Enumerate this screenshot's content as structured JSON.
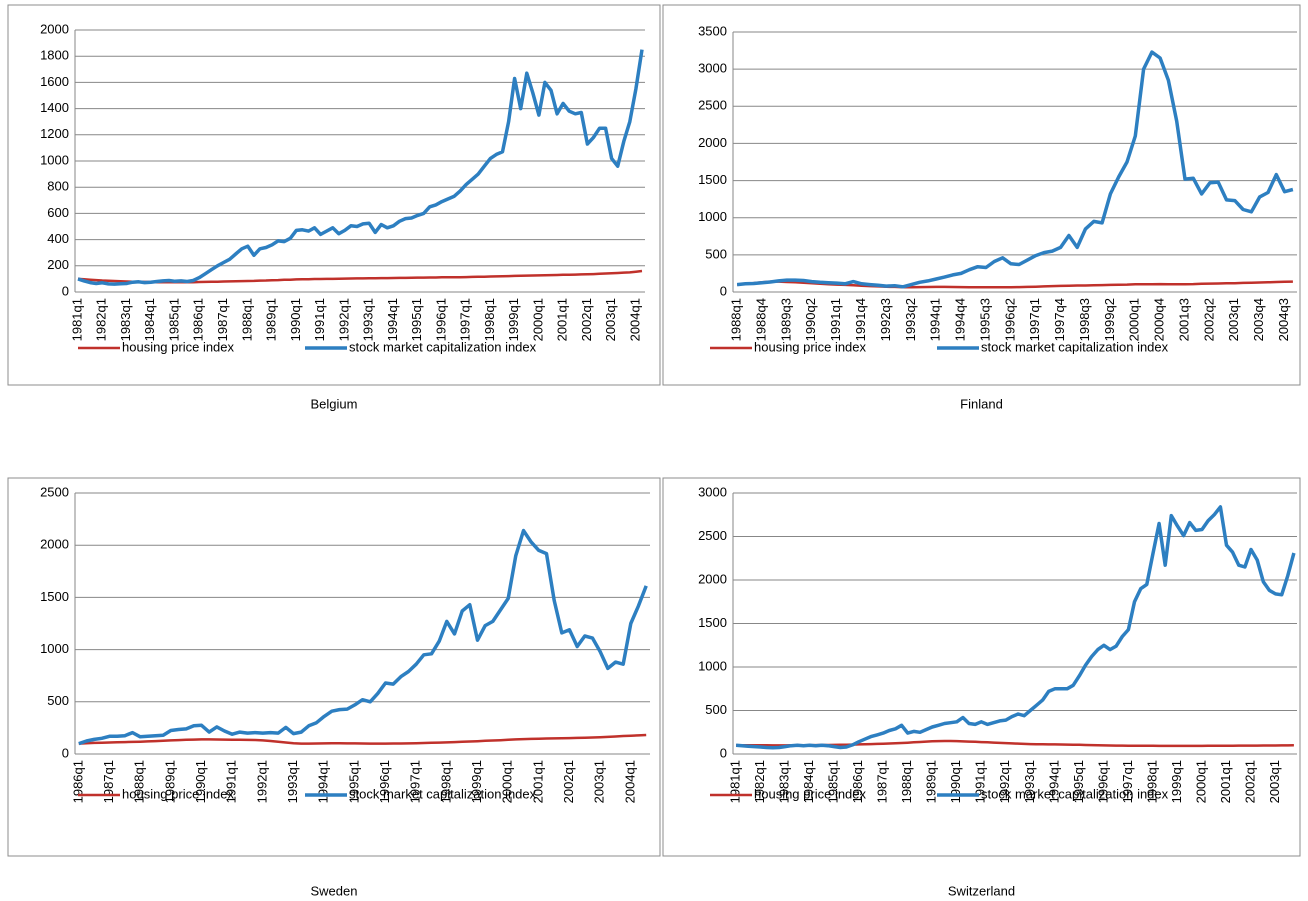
{
  "chart_data": [
    {
      "type": "line",
      "title": "Belgium",
      "categories": [
        "1981q1",
        null,
        null,
        null,
        "1982q1",
        null,
        null,
        null,
        "1983q1",
        null,
        null,
        null,
        "1984q1",
        null,
        null,
        null,
        "1985q1",
        null,
        null,
        null,
        "1986q1",
        null,
        null,
        null,
        "1987q1",
        null,
        null,
        null,
        "1988q1",
        null,
        null,
        null,
        "1989q1",
        null,
        null,
        null,
        "1990q1",
        null,
        null,
        null,
        "1991q1",
        null,
        null,
        null,
        "1992q1",
        null,
        null,
        null,
        "1993q1",
        null,
        null,
        null,
        "1994q1",
        null,
        null,
        null,
        "1995q1",
        null,
        null,
        null,
        "1996q1",
        null,
        null,
        null,
        "1997q1",
        null,
        null,
        null,
        "1998q1",
        null,
        null,
        null,
        "1999q1",
        null,
        null,
        null,
        "2000q1",
        null,
        null,
        null,
        "2001q1",
        null,
        null,
        null,
        "2002q1",
        null,
        null,
        null,
        "2003q1",
        null,
        null,
        null,
        "2004q1",
        null
      ],
      "series": [
        {
          "name": "housing price index",
          "color": "#c0312b",
          "values": [
            100,
            97,
            94,
            91,
            88,
            86,
            84,
            82,
            80,
            79,
            78,
            77,
            76,
            75,
            75,
            74,
            74,
            74,
            75,
            75,
            76,
            77,
            78,
            79,
            80,
            81,
            82,
            83,
            84,
            85,
            87,
            88,
            90,
            91,
            93,
            94,
            96,
            97,
            98,
            99,
            99,
            100,
            100,
            101,
            102,
            103,
            104,
            104,
            105,
            105,
            106,
            106,
            107,
            108,
            108,
            109,
            110,
            110,
            111,
            111,
            112,
            112,
            113,
            113,
            114,
            115,
            116,
            117,
            118,
            119,
            120,
            121,
            123,
            124,
            125,
            126,
            127,
            128,
            129,
            130,
            131,
            132,
            133,
            134,
            135,
            137,
            139,
            141,
            143,
            145,
            148,
            150,
            155,
            160
          ]
        },
        {
          "name": "stock market capitalization index",
          "color": "#2d7fc1",
          "values": [
            100,
            85,
            72,
            65,
            70,
            62,
            60,
            63,
            65,
            75,
            78,
            72,
            75,
            80,
            85,
            88,
            82,
            85,
            80,
            88,
            110,
            140,
            170,
            200,
            225,
            250,
            290,
            330,
            350,
            280,
            330,
            340,
            360,
            390,
            385,
            410,
            470,
            475,
            465,
            490,
            440,
            465,
            490,
            445,
            470,
            505,
            500,
            520,
            525,
            455,
            515,
            490,
            505,
            540,
            560,
            565,
            585,
            600,
            650,
            665,
            690,
            710,
            730,
            770,
            820,
            860,
            900,
            960,
            1020,
            1050,
            1070,
            1300,
            1630,
            1400,
            1670,
            1520,
            1350,
            1600,
            1540,
            1360,
            1440,
            1380,
            1360,
            1370,
            1130,
            1180,
            1250,
            1250,
            1020,
            960,
            1150,
            1300,
            1550,
            1850
          ]
        }
      ],
      "ylim": [
        0,
        2000
      ],
      "yticks": [
        0,
        200,
        400,
        600,
        800,
        1000,
        1200,
        1400,
        1600,
        1800,
        2000
      ],
      "grid": true,
      "legend": "bottom"
    },
    {
      "type": "line",
      "title": "Finland",
      "categories": [
        "1988q1",
        null,
        null,
        "1988q4",
        null,
        null,
        "1989q3",
        null,
        null,
        "1990q2",
        null,
        null,
        "1991q1",
        null,
        null,
        "1991q4",
        null,
        null,
        "1992q3",
        null,
        null,
        "1993q2",
        null,
        null,
        "1994q1",
        null,
        null,
        "1994q4",
        null,
        null,
        "1995q3",
        null,
        null,
        "1996q2",
        null,
        null,
        "1997q1",
        null,
        null,
        "1997q4",
        null,
        null,
        "1998q3",
        null,
        null,
        "1999q2",
        null,
        null,
        "2000q1",
        null,
        null,
        "2000q4",
        null,
        null,
        "2001q3",
        null,
        null,
        "2002q2",
        null,
        null,
        "2003q1",
        null,
        null,
        "2003q4",
        null,
        null,
        "2004q3",
        null
      ],
      "series": [
        {
          "name": "housing price index",
          "color": "#c0312b",
          "values": [
            100,
            110,
            120,
            130,
            140,
            140,
            135,
            130,
            125,
            118,
            110,
            105,
            100,
            95,
            90,
            85,
            80,
            75,
            70,
            68,
            65,
            65,
            66,
            67,
            68,
            68,
            67,
            66,
            65,
            64,
            63,
            63,
            63,
            64,
            66,
            68,
            72,
            76,
            80,
            82,
            85,
            87,
            88,
            90,
            93,
            96,
            98,
            100,
            103,
            105,
            105,
            106,
            105,
            104,
            105,
            107,
            110,
            113,
            115,
            117,
            119,
            122,
            125,
            128,
            131,
            134,
            137,
            140
          ]
        },
        {
          "name": "stock market capitalization index",
          "color": "#2d7fc1",
          "values": [
            100,
            110,
            115,
            125,
            135,
            150,
            160,
            160,
            155,
            140,
            130,
            125,
            120,
            110,
            140,
            110,
            100,
            90,
            80,
            85,
            70,
            100,
            130,
            150,
            175,
            200,
            230,
            250,
            300,
            340,
            330,
            410,
            460,
            380,
            370,
            430,
            490,
            530,
            550,
            600,
            760,
            600,
            850,
            950,
            930,
            1320,
            1550,
            1750,
            2100,
            3000,
            3230,
            3150,
            2850,
            2300,
            1520,
            1530,
            1320,
            1470,
            1480,
            1240,
            1230,
            1110,
            1080,
            1280,
            1340,
            1580,
            1350,
            1380
          ]
        }
      ],
      "ylim": [
        0,
        3500
      ],
      "yticks": [
        0,
        500,
        1000,
        1500,
        2000,
        2500,
        3000,
        3500
      ],
      "grid": true,
      "legend": "bottom"
    },
    {
      "type": "line",
      "title": "Sweden",
      "categories": [
        "1986q1",
        null,
        null,
        null,
        "1987q1",
        null,
        null,
        null,
        "1988q1",
        null,
        null,
        null,
        "1989q1",
        null,
        null,
        null,
        "1990q1",
        null,
        null,
        null,
        "1991q1",
        null,
        null,
        null,
        "1992q1",
        null,
        null,
        null,
        "1993q1",
        null,
        null,
        null,
        "1994q1",
        null,
        null,
        null,
        "1995q1",
        null,
        null,
        null,
        "1996q1",
        null,
        null,
        null,
        "1997q1",
        null,
        null,
        null,
        "1998q1",
        null,
        null,
        null,
        "1999q1",
        null,
        null,
        null,
        "2000q1",
        null,
        null,
        null,
        "2001q1",
        null,
        null,
        null,
        "2002q1",
        null,
        null,
        null,
        "2003q1",
        null,
        null,
        null,
        "2004q1",
        null,
        null
      ],
      "series": [
        {
          "name": "housing price index",
          "color": "#c0312b",
          "values": [
            100,
            103,
            106,
            108,
            110,
            112,
            114,
            116,
            118,
            121,
            124,
            127,
            130,
            133,
            136,
            138,
            140,
            140,
            139,
            138,
            137,
            136,
            135,
            134,
            130,
            125,
            118,
            110,
            103,
            100,
            100,
            101,
            102,
            103,
            103,
            102,
            102,
            101,
            100,
            100,
            100,
            101,
            101,
            102,
            103,
            105,
            107,
            109,
            111,
            114,
            117,
            120,
            123,
            126,
            129,
            132,
            136,
            140,
            143,
            145,
            147,
            148,
            149,
            150,
            152,
            154,
            156,
            158,
            161,
            164,
            168,
            172,
            175,
            178,
            182
          ]
        },
        {
          "name": "stock market capitalization index",
          "color": "#2d7fc1",
          "values": [
            100,
            125,
            140,
            150,
            170,
            170,
            175,
            205,
            165,
            170,
            175,
            180,
            225,
            235,
            240,
            270,
            275,
            210,
            260,
            220,
            190,
            210,
            200,
            205,
            200,
            205,
            200,
            255,
            195,
            210,
            270,
            300,
            360,
            410,
            425,
            430,
            470,
            520,
            500,
            580,
            680,
            670,
            740,
            790,
            860,
            950,
            960,
            1080,
            1270,
            1150,
            1370,
            1430,
            1090,
            1230,
            1270,
            1380,
            1490,
            1900,
            2140,
            2030,
            1950,
            1920,
            1470,
            1160,
            1190,
            1030,
            1130,
            1110,
            980,
            820,
            880,
            860,
            1250,
            1420,
            1610
          ]
        }
      ],
      "ylim": [
        0,
        2500
      ],
      "yticks": [
        0,
        500,
        1000,
        1500,
        2000,
        2500
      ],
      "grid": true,
      "legend": "bottom"
    },
    {
      "type": "line",
      "title": "Switzerland",
      "categories": [
        "1981q1",
        null,
        null,
        null,
        "1982q1",
        null,
        null,
        null,
        "1983q1",
        null,
        null,
        null,
        "1984q1",
        null,
        null,
        null,
        "1985q1",
        null,
        null,
        null,
        "1986q1",
        null,
        null,
        null,
        "1987q1",
        null,
        null,
        null,
        "1988q1",
        null,
        null,
        null,
        "1989q1",
        null,
        null,
        null,
        "1990q1",
        null,
        null,
        null,
        "1991q1",
        null,
        null,
        null,
        "1992q1",
        null,
        null,
        null,
        "1993q1",
        null,
        null,
        null,
        "1994q1",
        null,
        null,
        null,
        "1995q1",
        null,
        null,
        null,
        "1996q1",
        null,
        null,
        null,
        "1997q1",
        null,
        null,
        null,
        "1998q1",
        null,
        null,
        null,
        "1999q1",
        null,
        null,
        null,
        "2000q1",
        null,
        null,
        null,
        "2001q1",
        null,
        null,
        null,
        "2002q1",
        null,
        null,
        null,
        "2003q1",
        null,
        null,
        null
      ],
      "series": [
        {
          "name": "housing price index",
          "color": "#c0312b",
          "values": [
            100,
            100,
            100,
            100,
            100,
            100,
            99,
            99,
            99,
            100,
            100,
            100,
            101,
            102,
            103,
            104,
            105,
            106,
            107,
            108,
            110,
            112,
            114,
            116,
            118,
            121,
            124,
            127,
            130,
            134,
            138,
            142,
            146,
            148,
            150,
            150,
            148,
            145,
            142,
            140,
            137,
            134,
            131,
            128,
            125,
            122,
            119,
            116,
            114,
            112,
            111,
            110,
            110,
            109,
            108,
            107,
            106,
            104,
            102,
            100,
            99,
            98,
            97,
            96,
            95,
            95,
            94,
            94,
            94,
            93,
            93,
            93,
            93,
            93,
            93,
            93,
            93,
            94,
            94,
            94,
            95,
            95,
            96,
            96,
            97,
            97,
            98,
            98,
            98,
            99,
            99,
            100
          ]
        },
        {
          "name": "stock market capitalization index",
          "color": "#2d7fc1",
          "values": [
            100,
            95,
            90,
            85,
            80,
            75,
            72,
            75,
            85,
            95,
            100,
            95,
            100,
            95,
            100,
            95,
            85,
            75,
            80,
            105,
            140,
            170,
            200,
            220,
            240,
            270,
            290,
            330,
            240,
            260,
            250,
            280,
            310,
            330,
            350,
            360,
            370,
            420,
            350,
            340,
            370,
            340,
            360,
            380,
            390,
            430,
            460,
            440,
            500,
            560,
            620,
            720,
            750,
            750,
            750,
            790,
            900,
            1020,
            1120,
            1200,
            1250,
            1200,
            1240,
            1350,
            1430,
            1750,
            1900,
            1950,
            2300,
            2650,
            2170,
            2740,
            2620,
            2510,
            2660,
            2570,
            2580,
            2680,
            2750,
            2840,
            2400,
            2320,
            2170,
            2150,
            2350,
            2230,
            1980,
            1880,
            1840,
            1830,
            2050,
            2310
          ]
        }
      ],
      "ylim": [
        0,
        3000
      ],
      "yticks": [
        0,
        500,
        1000,
        1500,
        2000,
        2500,
        3000
      ],
      "grid": true,
      "legend": "bottom"
    }
  ]
}
